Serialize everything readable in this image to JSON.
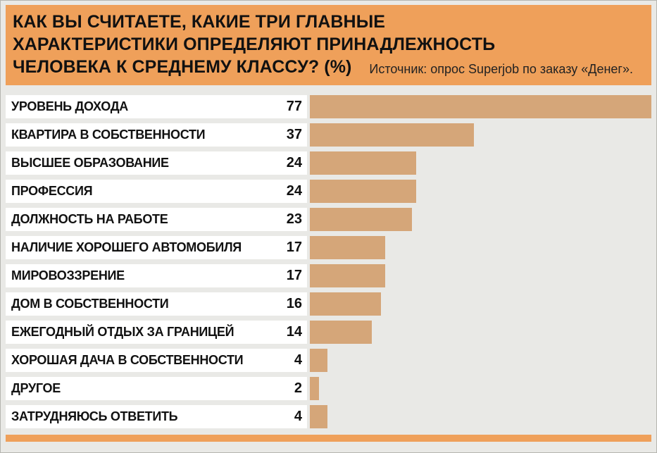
{
  "header": {
    "title": "КАК ВЫ СЧИТАЕТЕ, КАКИЕ ТРИ ГЛАВНЫЕ ХАРАКТЕРИСТИКИ ОПРЕДЕЛЯЮТ ПРИНАДЛЕЖНОСТЬ ЧЕЛОВЕКА К СРЕДНЕМУ КЛАССУ? (%)",
    "source": "Источник: опрос Superjob по заказу «Денег»."
  },
  "colors": {
    "header_bg": "#efa05a",
    "bar_fill": "#d5a679",
    "page_bg": "#e9e9e6",
    "row_bg": "#ffffff",
    "text": "#111111"
  },
  "chart_data": {
    "type": "bar",
    "orientation": "horizontal",
    "title": "КАК ВЫ СЧИТАЕТЕ, КАКИЕ ТРИ ГЛАВНЫЕ ХАРАКТЕРИСТИКИ ОПРЕДЕЛЯЮТ ПРИНАДЛЕЖНОСТЬ ЧЕЛОВЕКА К СРЕДНЕМУ КЛАССУ? (%)",
    "subtitle": "Источник: опрос Superjob по заказу «Денег».",
    "unit": "%",
    "xlim": [
      0,
      77
    ],
    "grid": false,
    "legend": "none",
    "categories": [
      "УРОВЕНЬ ДОХОДА",
      "КВАРТИРА В СОБСТВЕННОСТИ",
      "ВЫСШЕЕ ОБРАЗОВАНИЕ",
      "ПРОФЕССИЯ",
      "ДОЛЖНОСТЬ НА РАБОТЕ",
      "НАЛИЧИЕ ХОРОШЕГО АВТОМОБИЛЯ",
      "МИРОВОЗЗРЕНИЕ",
      "ДОМ В СОБСТВЕННОСТИ",
      "ЕЖЕГОДНЫЙ ОТДЫХ ЗА ГРАНИЦЕЙ",
      "ХОРОШАЯ ДАЧА В СОБСТВЕННОСТИ",
      "ДРУГОЕ",
      "ЗАТРУДНЯЮСЬ ОТВЕТИТЬ"
    ],
    "values": [
      77,
      37,
      24,
      24,
      23,
      17,
      17,
      16,
      14,
      4,
      2,
      4
    ]
  }
}
